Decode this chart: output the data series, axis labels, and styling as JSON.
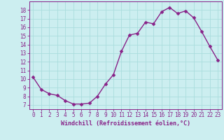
{
  "x": [
    0,
    1,
    2,
    3,
    4,
    5,
    6,
    7,
    8,
    9,
    10,
    11,
    12,
    13,
    14,
    15,
    16,
    17,
    18,
    19,
    20,
    21,
    22,
    23
  ],
  "y": [
    10.2,
    8.8,
    8.3,
    8.1,
    7.5,
    7.1,
    7.1,
    7.2,
    8.0,
    9.4,
    10.5,
    13.2,
    15.1,
    15.3,
    16.6,
    16.4,
    17.8,
    18.3,
    17.6,
    17.9,
    17.1,
    15.5,
    13.8,
    12.2
  ],
  "line_color": "#882288",
  "marker": "D",
  "marker_size": 2.5,
  "bg_color": "#cceef0",
  "grid_color": "#aadddd",
  "xlabel": "Windchill (Refroidissement éolien,°C)",
  "ylim": [
    6.5,
    19.0
  ],
  "yticks": [
    7,
    8,
    9,
    10,
    11,
    12,
    13,
    14,
    15,
    16,
    17,
    18
  ],
  "xticks": [
    0,
    1,
    2,
    3,
    4,
    5,
    6,
    7,
    8,
    9,
    10,
    11,
    12,
    13,
    14,
    15,
    16,
    17,
    18,
    19,
    20,
    21,
    22,
    23
  ],
  "xlim": [
    -0.5,
    23.5
  ],
  "axis_color": "#882288",
  "tick_color": "#882288",
  "label_color": "#882288",
  "xlabel_fontsize": 6.0,
  "tick_fontsize": 5.5,
  "linewidth": 1.0
}
